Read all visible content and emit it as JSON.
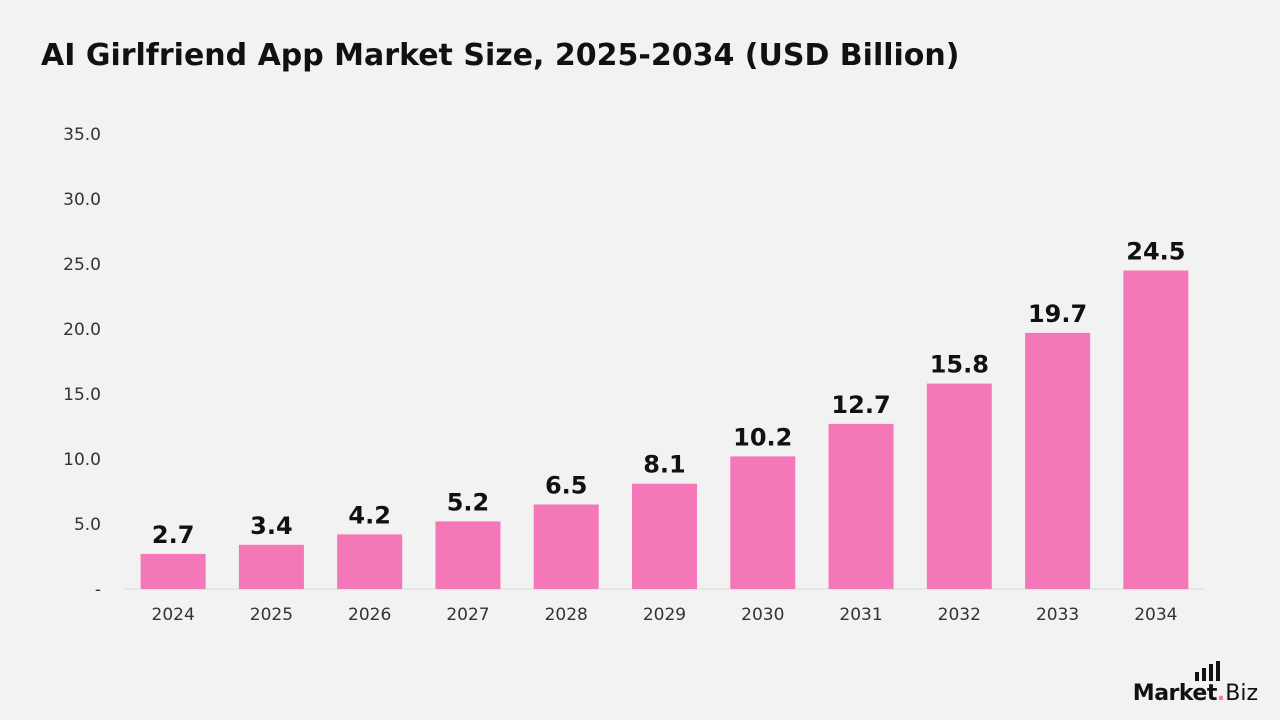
{
  "page": {
    "title": "AI Girlfriend App Market Size, 2025-2034 (USD Billion)"
  },
  "brand": {
    "logo_main": "Market",
    "logo_dot": ".",
    "logo_sub": "Biz",
    "accent_color": "#f477b8"
  },
  "chart_data": {
    "type": "bar",
    "title": "AI Girlfriend App Market Size, 2025-2034 (USD Billion)",
    "xlabel": "",
    "ylabel": "",
    "categories": [
      "2024",
      "2025",
      "2026",
      "2027",
      "2028",
      "2029",
      "2030",
      "2031",
      "2032",
      "2033",
      "2034"
    ],
    "values": [
      2.7,
      3.4,
      4.2,
      5.2,
      6.5,
      8.1,
      10.2,
      12.7,
      15.8,
      19.7,
      24.5
    ],
    "value_labels": [
      "2.7",
      "3.4",
      "4.2",
      "5.2",
      "6.5",
      "8.1",
      "10.2",
      "12.7",
      "15.8",
      "19.7",
      "24.5"
    ],
    "ylim": [
      0,
      35
    ],
    "yticks": [
      0,
      5,
      10,
      15,
      20,
      25,
      30,
      35
    ],
    "ytick_labels": [
      "-",
      "5.0",
      "10.0",
      "15.0",
      "20.0",
      "25.0",
      "30.0",
      "35.0"
    ],
    "grid": false,
    "legend": "none",
    "bar_color": "#f477b8"
  }
}
